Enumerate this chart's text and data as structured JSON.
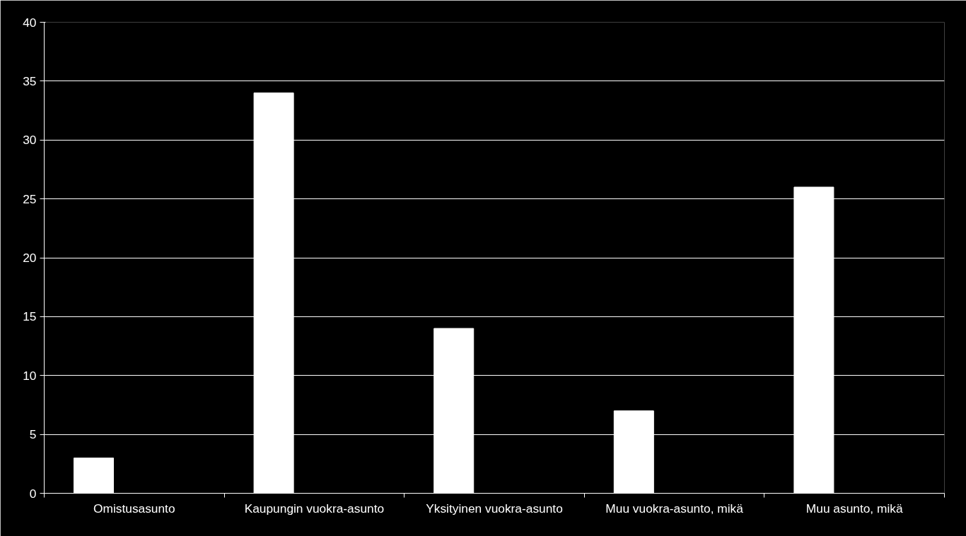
{
  "chart_data": {
    "type": "bar",
    "categories": [
      "Omistusasunto",
      "Kaupungin vuokra-asunto",
      "Yksityinen vuokra-asunto",
      "Muu vuokra-asunto, mikä",
      "Muu asunto, mikä"
    ],
    "values": [
      3,
      34,
      14,
      7,
      26
    ],
    "color": "#ffffff",
    "ylim": [
      0,
      40
    ],
    "yticks": [
      0,
      5,
      10,
      15,
      20,
      25,
      30,
      35,
      40
    ],
    "grid": "y"
  }
}
